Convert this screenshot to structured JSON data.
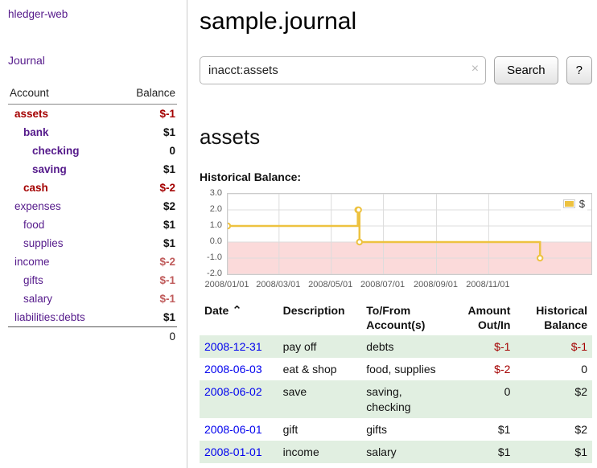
{
  "palette": {
    "visited-purple": "#551a8b",
    "link-blue": "#0000ee",
    "neg-strong": "#a40000",
    "neg-soft": "#c05c5c",
    "row-stripe": "#e1efe1",
    "chart-line": "#edc240",
    "chart-negative-band": "#fbdada",
    "chart-grid": "#dcdcdc"
  },
  "brand": "hledger-web",
  "sidebar": {
    "journal_link": "Journal",
    "header": {
      "account": "Account",
      "balance": "Balance"
    },
    "accounts": [
      {
        "name": "assets",
        "indent": 0,
        "balance": "$-1",
        "bold": true,
        "name_negative": true,
        "balance_negative": true
      },
      {
        "name": "bank",
        "indent": 1,
        "balance": "$1",
        "bold": true
      },
      {
        "name": "checking",
        "indent": 2,
        "balance": "0",
        "bold": true
      },
      {
        "name": "saving",
        "indent": 2,
        "balance": "$1",
        "bold": true
      },
      {
        "name": "cash",
        "indent": 1,
        "balance": "$-2",
        "bold": true,
        "name_negative": true,
        "balance_negative": true
      },
      {
        "name": "expenses",
        "indent": 0,
        "balance": "$2"
      },
      {
        "name": "food",
        "indent": 1,
        "balance": "$1"
      },
      {
        "name": "supplies",
        "indent": 1,
        "balance": "$1"
      },
      {
        "name": "income",
        "indent": 0,
        "balance": "$-2",
        "balance_negative_soft": true
      },
      {
        "name": "gifts",
        "indent": 1,
        "balance": "$-1",
        "balance_negative_soft": true
      },
      {
        "name": "salary",
        "indent": 1,
        "balance": "$-1",
        "balance_negative_soft": true
      },
      {
        "name": "liabilities:debts",
        "indent": 0,
        "balance": "$1"
      }
    ],
    "total": "0"
  },
  "main": {
    "title": "sample.journal",
    "search": {
      "value": "inacct:assets",
      "clear_icon": "×",
      "search_button": "Search",
      "help_button": "?"
    },
    "account_heading": "assets"
  },
  "chart_data": {
    "type": "line",
    "step": true,
    "title": "Historical Balance:",
    "ylim": [
      -2,
      3
    ],
    "y_ticks": [
      "3.0",
      "2.0",
      "1.0",
      "0.0",
      "-1.0",
      "-2.0"
    ],
    "x_domain": [
      "2008-01-01",
      "2009-03-01"
    ],
    "x_ticks": [
      {
        "label": "2008/01/01",
        "date": "2008-01-01"
      },
      {
        "label": "2008/03/01",
        "date": "2008-03-01"
      },
      {
        "label": "2008/05/01",
        "date": "2008-05-01"
      },
      {
        "label": "2008/07/01",
        "date": "2008-07-01"
      },
      {
        "label": "2008/09/01",
        "date": "2008-09-01"
      },
      {
        "label": "2008/11/01",
        "date": "2008-11-01"
      }
    ],
    "series": [
      {
        "name": "$",
        "color": "#edc240",
        "points": [
          {
            "x": "2008-01-01",
            "y": 1
          },
          {
            "x": "2008-06-01",
            "y": 2
          },
          {
            "x": "2008-06-02",
            "y": 2
          },
          {
            "x": "2008-06-03",
            "y": 0
          },
          {
            "x": "2008-12-31",
            "y": -1
          }
        ]
      }
    ],
    "negative_band_below": 0,
    "legend_position": "top-right",
    "grid": true
  },
  "register": {
    "headers": {
      "date": "Date",
      "sort_icon": "⌃",
      "description": "Description",
      "accounts_line1": "To/From",
      "accounts_line2": "Account(s)",
      "amount_line1": "Amount",
      "amount_line2": "Out/In",
      "balance_line1": "Historical",
      "balance_line2": "Balance"
    },
    "rows": [
      {
        "date": "2008-12-31",
        "description": "pay off",
        "accounts": "debts",
        "amount": "$-1",
        "amount_negative": true,
        "balance": "$-1",
        "balance_negative": true
      },
      {
        "date": "2008-06-03",
        "description": "eat & shop",
        "accounts": "food, supplies",
        "amount": "$-2",
        "amount_negative": true,
        "balance": "0"
      },
      {
        "date": "2008-06-02",
        "description": "save",
        "accounts": "saving, checking",
        "amount": "0",
        "balance": "$2"
      },
      {
        "date": "2008-06-01",
        "description": "gift",
        "accounts": "gifts",
        "amount": "$1",
        "balance": "$2"
      },
      {
        "date": "2008-01-01",
        "description": "income",
        "accounts": "salary",
        "amount": "$1",
        "balance": "$1"
      }
    ]
  }
}
